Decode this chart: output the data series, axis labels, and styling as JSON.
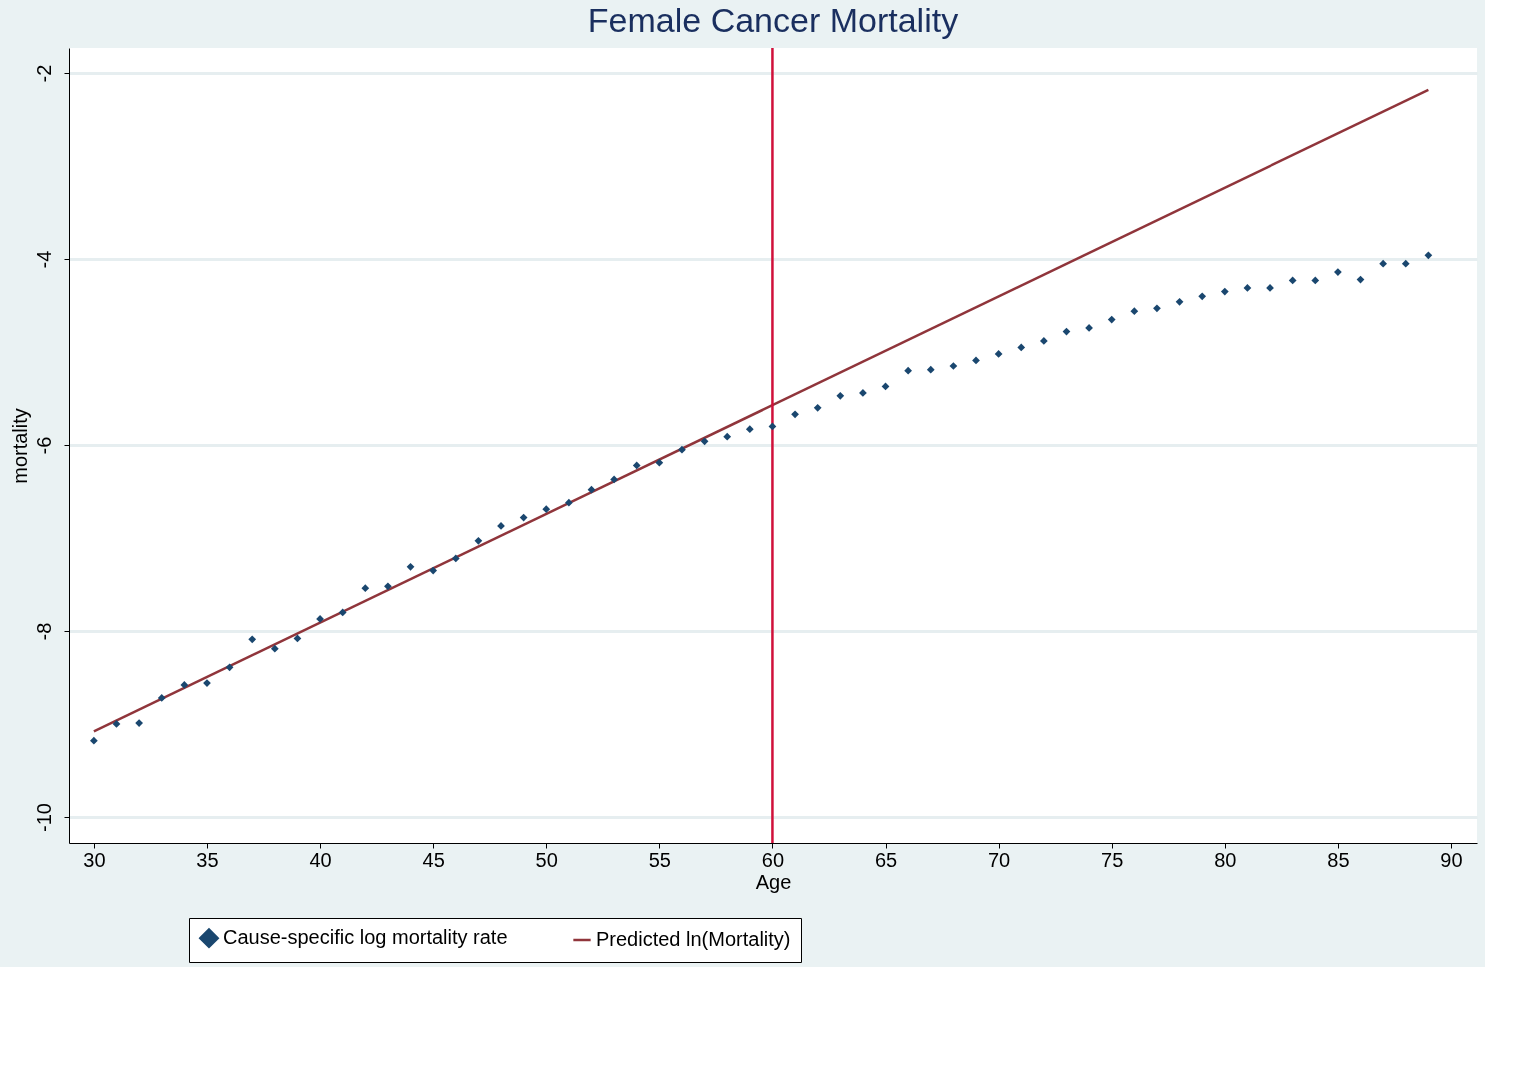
{
  "chart_data": {
    "type": "scatter",
    "title": "Female Cancer Mortality",
    "xlabel": "Age",
    "ylabel": "mortality",
    "xlim": [
      28.9,
      91.15
    ],
    "ylim": [
      -10.28,
      -1.73
    ],
    "xticks": [
      30,
      35,
      40,
      45,
      50,
      55,
      60,
      65,
      70,
      75,
      80,
      85,
      90
    ],
    "yticks": [
      -10,
      -8,
      -6,
      -4,
      -2
    ],
    "grid": "y",
    "legend": "bottom",
    "ref_lines": [
      {
        "axis": "x",
        "value": 60,
        "label": null,
        "color": "#d0103a"
      }
    ],
    "series": [
      {
        "name": "Cause-specific log mortality rate",
        "marker": "diamond",
        "color": "#1a476f",
        "x": [
          30,
          31,
          32,
          33,
          34,
          35,
          36,
          37,
          38,
          39,
          40,
          41,
          42,
          43,
          44,
          45,
          46,
          47,
          48,
          49,
          50,
          51,
          52,
          53,
          54,
          55,
          56,
          57,
          58,
          59,
          60,
          61,
          62,
          63,
          64,
          65,
          66,
          67,
          68,
          69,
          70,
          71,
          72,
          73,
          74,
          75,
          76,
          77,
          78,
          79,
          80,
          81,
          82,
          83,
          84,
          85,
          86,
          87,
          88,
          89
        ],
        "values": [
          -9.18,
          -9.0,
          -8.99,
          -8.72,
          -8.58,
          -8.56,
          -8.39,
          -8.09,
          -8.19,
          -8.08,
          -7.87,
          -7.8,
          -7.54,
          -7.52,
          -7.31,
          -7.35,
          -7.22,
          -7.03,
          -6.87,
          -6.78,
          -6.69,
          -6.62,
          -6.48,
          -6.37,
          -6.22,
          -6.19,
          -6.05,
          -5.96,
          -5.91,
          -5.83,
          -5.8,
          -5.67,
          -5.6,
          -5.47,
          -5.44,
          -5.37,
          -5.2,
          -5.19,
          -5.15,
          -5.09,
          -5.02,
          -4.95,
          -4.88,
          -4.78,
          -4.74,
          -4.65,
          -4.56,
          -4.53,
          -4.46,
          -4.4,
          -4.35,
          -4.31,
          -4.31,
          -4.23,
          -4.23,
          -4.14,
          -4.22,
          -4.05,
          -4.05,
          -3.96
        ]
      },
      {
        "name": "Predicted ln(Mortality)",
        "type": "line",
        "marker": "none",
        "color": "#90353b",
        "line_style": "solid",
        "x": [
          30,
          89
        ],
        "values": [
          -9.08,
          -2.18
        ]
      }
    ]
  }
}
